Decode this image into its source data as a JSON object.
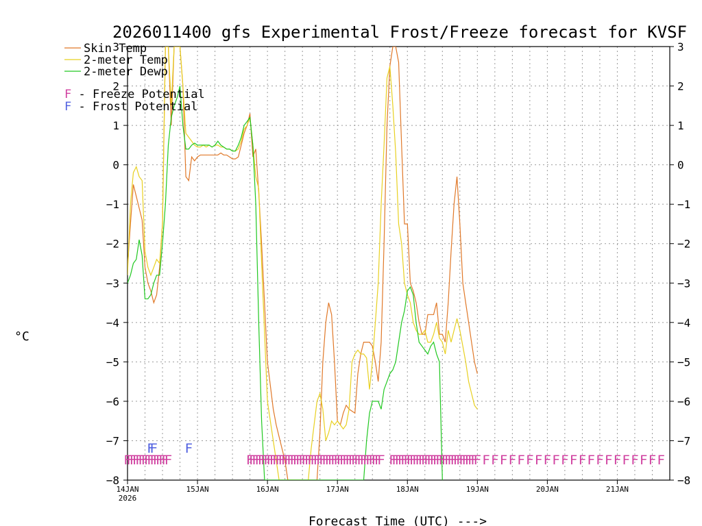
{
  "chart_data": {
    "type": "line",
    "title": "2026011400 gfs Experimental Frost/Freeze forecast for KVSF",
    "xlabel": "Forecast Time (UTC) --->",
    "ylabel": "°C",
    "ylim": [
      -8,
      3
    ],
    "yticks": [
      3,
      2,
      1,
      0,
      -1,
      -2,
      -3,
      -4,
      -5,
      -6,
      -7,
      -8
    ],
    "ytick_labels": [
      "3",
      "2",
      "1",
      "0",
      "−1",
      "−2",
      "−3",
      "−4",
      "−5",
      "−6",
      "−7",
      "−8"
    ],
    "xlim_hours": [
      0,
      186
    ],
    "xticks": [
      {
        "hour": 0,
        "label": "14JAN",
        "sub": "2026"
      },
      {
        "hour": 24,
        "label": "15JAN"
      },
      {
        "hour": 48,
        "label": "16JAN"
      },
      {
        "hour": 72,
        "label": "17JAN"
      },
      {
        "hour": 96,
        "label": "18JAN"
      },
      {
        "hour": 120,
        "label": "19JAN"
      },
      {
        "hour": 144,
        "label": "20JAN"
      },
      {
        "hour": 168,
        "label": "21JAN"
      }
    ],
    "legend": {
      "position": "top-left",
      "entries": [
        {
          "name": "Skin Temp",
          "color": "#e07828"
        },
        {
          "name": "2-meter Temp",
          "color": "#e8d020"
        },
        {
          "name": "2-meter Dewp",
          "color": "#20c820"
        }
      ],
      "potentials": [
        {
          "label": "F - Freeze Potential",
          "color": "#d040a0"
        },
        {
          "label": "F - Frost Potential",
          "color": "#5060e0"
        }
      ]
    },
    "series": [
      {
        "name": "Skin Temp",
        "color": "#e07828",
        "x": [
          0,
          1,
          2,
          3,
          4,
          5,
          6,
          7,
          8,
          9,
          10,
          11,
          12,
          13,
          14,
          15,
          16,
          17,
          18,
          19,
          20,
          21,
          22,
          23,
          24,
          25,
          26,
          27,
          28,
          29,
          30,
          31,
          32,
          33,
          34,
          35,
          36,
          37,
          38,
          39,
          40,
          41,
          42,
          43,
          44,
          45,
          46,
          48,
          50,
          51,
          52,
          54,
          55,
          60,
          63,
          65,
          66,
          67,
          68,
          69,
          70,
          71,
          72,
          73,
          74,
          75,
          76,
          78,
          79,
          80,
          81,
          82,
          83,
          84,
          85,
          86,
          87,
          88,
          89,
          90,
          91,
          92,
          93,
          94,
          95,
          96,
          97,
          98,
          99,
          100,
          101,
          102,
          103,
          104,
          105,
          106,
          107,
          108,
          109,
          110,
          111,
          112,
          113,
          114,
          115,
          116,
          117,
          118,
          119,
          120
        ],
        "y": [
          -2.6,
          -1.5,
          -0.5,
          -0.8,
          -1.1,
          -1.4,
          -2.6,
          -3.0,
          -3.2,
          -3.5,
          -3.3,
          -2.6,
          -1.5,
          3.0,
          3.0,
          1.0,
          3.0,
          3.0,
          3.0,
          2.0,
          -0.3,
          -0.4,
          0.2,
          0.1,
          0.2,
          0.25,
          0.25,
          0.25,
          0.25,
          0.25,
          0.25,
          0.25,
          0.3,
          0.25,
          0.25,
          0.2,
          0.15,
          0.15,
          0.2,
          0.5,
          0.8,
          1.0,
          1.3,
          0.2,
          0.4,
          -0.7,
          -2.0,
          -5.0,
          -6.2,
          -6.6,
          -6.9,
          -7.5,
          -8.0,
          -8.0,
          -8.0,
          -8.0,
          -6.8,
          -5.0,
          -4.0,
          -3.5,
          -3.8,
          -5.0,
          -6.5,
          -6.6,
          -6.3,
          -6.1,
          -6.2,
          -6.3,
          -5.3,
          -4.8,
          -4.5,
          -4.5,
          -4.5,
          -4.6,
          -5.0,
          -5.5,
          -4.5,
          -2.0,
          1.0,
          2.5,
          3.0,
          3.0,
          2.6,
          0.5,
          -1.5,
          -1.5,
          -3.0,
          -3.2,
          -3.5,
          -4.0,
          -4.3,
          -4.3,
          -3.8,
          -3.8,
          -3.8,
          -3.5,
          -4.3,
          -4.3,
          -4.5,
          -3.5,
          -2.2,
          -1.0,
          -0.3,
          -1.5,
          -3.0,
          -3.5,
          -4.0,
          -4.5,
          -5.0,
          -5.3
        ]
      },
      {
        "name": "2-meter Temp",
        "color": "#e8d020",
        "x": [
          0,
          1,
          2,
          3,
          4,
          5,
          6,
          7,
          8,
          9,
          10,
          11,
          12,
          13,
          14,
          15,
          16,
          17,
          18,
          19,
          20,
          21,
          22,
          23,
          24,
          25,
          26,
          27,
          28,
          29,
          30,
          31,
          32,
          33,
          34,
          35,
          36,
          37,
          38,
          39,
          40,
          41,
          42,
          43,
          44,
          45,
          46,
          48,
          50,
          51,
          52,
          53,
          54,
          62,
          63,
          65,
          66,
          67,
          68,
          69,
          70,
          71,
          72,
          73,
          74,
          75,
          76,
          77,
          78,
          79,
          80,
          81,
          82,
          83,
          84,
          85,
          86,
          87,
          88,
          89,
          90,
          91,
          92,
          93,
          94,
          95,
          96,
          97,
          98,
          99,
          100,
          101,
          102,
          103,
          104,
          105,
          106,
          107,
          108,
          109,
          110,
          111,
          112,
          113,
          114,
          115,
          116,
          117,
          118,
          119,
          120
        ],
        "y": [
          -2.8,
          -1.0,
          -0.2,
          -0.05,
          -0.3,
          -0.4,
          -2.2,
          -2.6,
          -2.8,
          -2.6,
          -2.4,
          -2.5,
          -1.5,
          3.0,
          3.0,
          1.5,
          3.0,
          3.0,
          3.0,
          2.0,
          0.8,
          0.7,
          0.6,
          0.5,
          0.45,
          0.45,
          0.5,
          0.45,
          0.5,
          0.45,
          0.5,
          0.5,
          0.45,
          0.45,
          0.4,
          0.4,
          0.35,
          0.35,
          0.4,
          0.6,
          0.9,
          1.0,
          1.2,
          0.5,
          -0.3,
          -0.6,
          -2.5,
          -6.0,
          -7.0,
          -7.5,
          -8.0,
          -8.0,
          -8.0,
          -8.0,
          -7.2,
          -6.0,
          -5.8,
          -6.2,
          -7.0,
          -6.8,
          -6.5,
          -6.6,
          -6.5,
          -6.6,
          -6.7,
          -6.6,
          -6.2,
          -5.0,
          -4.8,
          -4.7,
          -4.8,
          -4.8,
          -4.9,
          -5.7,
          -5.0,
          -4.0,
          -3.0,
          -1.0,
          0.5,
          2.2,
          2.5,
          1.5,
          0.3,
          -1.5,
          -2.0,
          -3.0,
          -3.3,
          -3.5,
          -4.0,
          -4.2,
          -4.3,
          -4.3,
          -4.2,
          -4.5,
          -4.5,
          -4.3,
          -4.0,
          -4.4,
          -4.5,
          -4.8,
          -4.2,
          -4.5,
          -4.2,
          -3.9,
          -4.2,
          -4.6,
          -5.0,
          -5.5,
          -5.8,
          -6.1,
          -6.2
        ]
      },
      {
        "name": "2-meter Dewp",
        "color": "#20c820",
        "x": [
          0,
          1,
          2,
          3,
          4,
          5,
          6,
          7,
          8,
          9,
          10,
          11,
          12,
          13,
          14,
          15,
          16,
          17,
          18,
          19,
          20,
          21,
          22,
          23,
          24,
          25,
          26,
          27,
          28,
          29,
          30,
          31,
          32,
          33,
          34,
          35,
          36,
          37,
          38,
          39,
          40,
          41,
          42,
          43,
          44,
          45,
          46,
          47,
          48,
          81,
          82,
          83,
          84,
          85,
          86,
          87,
          88,
          89,
          90,
          91,
          92,
          93,
          94,
          95,
          96,
          97,
          98,
          99,
          100,
          101,
          102,
          103,
          104,
          105,
          106,
          107,
          108
        ],
        "y": [
          -3.0,
          -2.8,
          -2.5,
          -2.4,
          -1.9,
          -2.3,
          -3.4,
          -3.4,
          -3.3,
          -3.0,
          -2.8,
          -2.8,
          -2.0,
          -1.0,
          0.5,
          1.2,
          1.5,
          1.7,
          2.0,
          1.0,
          0.4,
          0.4,
          0.5,
          0.55,
          0.5,
          0.5,
          0.5,
          0.5,
          0.5,
          0.45,
          0.5,
          0.6,
          0.5,
          0.45,
          0.4,
          0.4,
          0.35,
          0.35,
          0.5,
          0.7,
          1.0,
          1.1,
          1.2,
          0.5,
          -1.0,
          -4.0,
          -6.5,
          -8.0,
          -8.0,
          -8.0,
          -7.0,
          -6.3,
          -6.0,
          -6.0,
          -6.0,
          -6.2,
          -5.7,
          -5.5,
          -5.3,
          -5.2,
          -5.0,
          -4.5,
          -4.0,
          -3.7,
          -3.2,
          -3.1,
          -3.3,
          -4.0,
          -4.5,
          -4.6,
          -4.7,
          -4.8,
          -4.6,
          -4.5,
          -4.8,
          -5.0,
          -8.0
        ]
      }
    ],
    "potential_markers": [
      {
        "name": "Freeze Potential",
        "letter": "F",
        "color": "#d040a0",
        "level": -7.5,
        "hours": [
          0,
          1,
          2,
          3,
          4,
          5,
          6,
          7,
          8,
          9,
          10,
          11,
          12,
          13,
          14,
          42,
          43,
          44,
          45,
          46,
          47,
          48,
          49,
          50,
          51,
          52,
          53,
          54,
          55,
          56,
          57,
          58,
          59,
          60,
          61,
          62,
          63,
          64,
          65,
          66,
          67,
          68,
          69,
          70,
          71,
          72,
          73,
          74,
          75,
          76,
          77,
          78,
          79,
          80,
          81,
          82,
          83,
          84,
          85,
          86,
          87,
          91,
          92,
          93,
          94,
          95,
          96,
          97,
          98,
          99,
          100,
          101,
          102,
          103,
          104,
          105,
          106,
          107,
          108,
          109,
          110,
          111,
          112,
          113,
          114,
          115,
          116,
          117,
          118,
          119,
          120,
          123,
          126,
          129,
          132,
          135,
          138,
          141,
          144,
          147,
          150,
          153,
          156,
          159,
          162,
          165,
          168,
          171,
          174,
          177,
          180,
          183
        ]
      },
      {
        "name": "Frost Potential",
        "letter": "F",
        "color": "#5060e0",
        "level": -7.2,
        "hours": [
          8,
          9,
          21
        ]
      }
    ]
  }
}
